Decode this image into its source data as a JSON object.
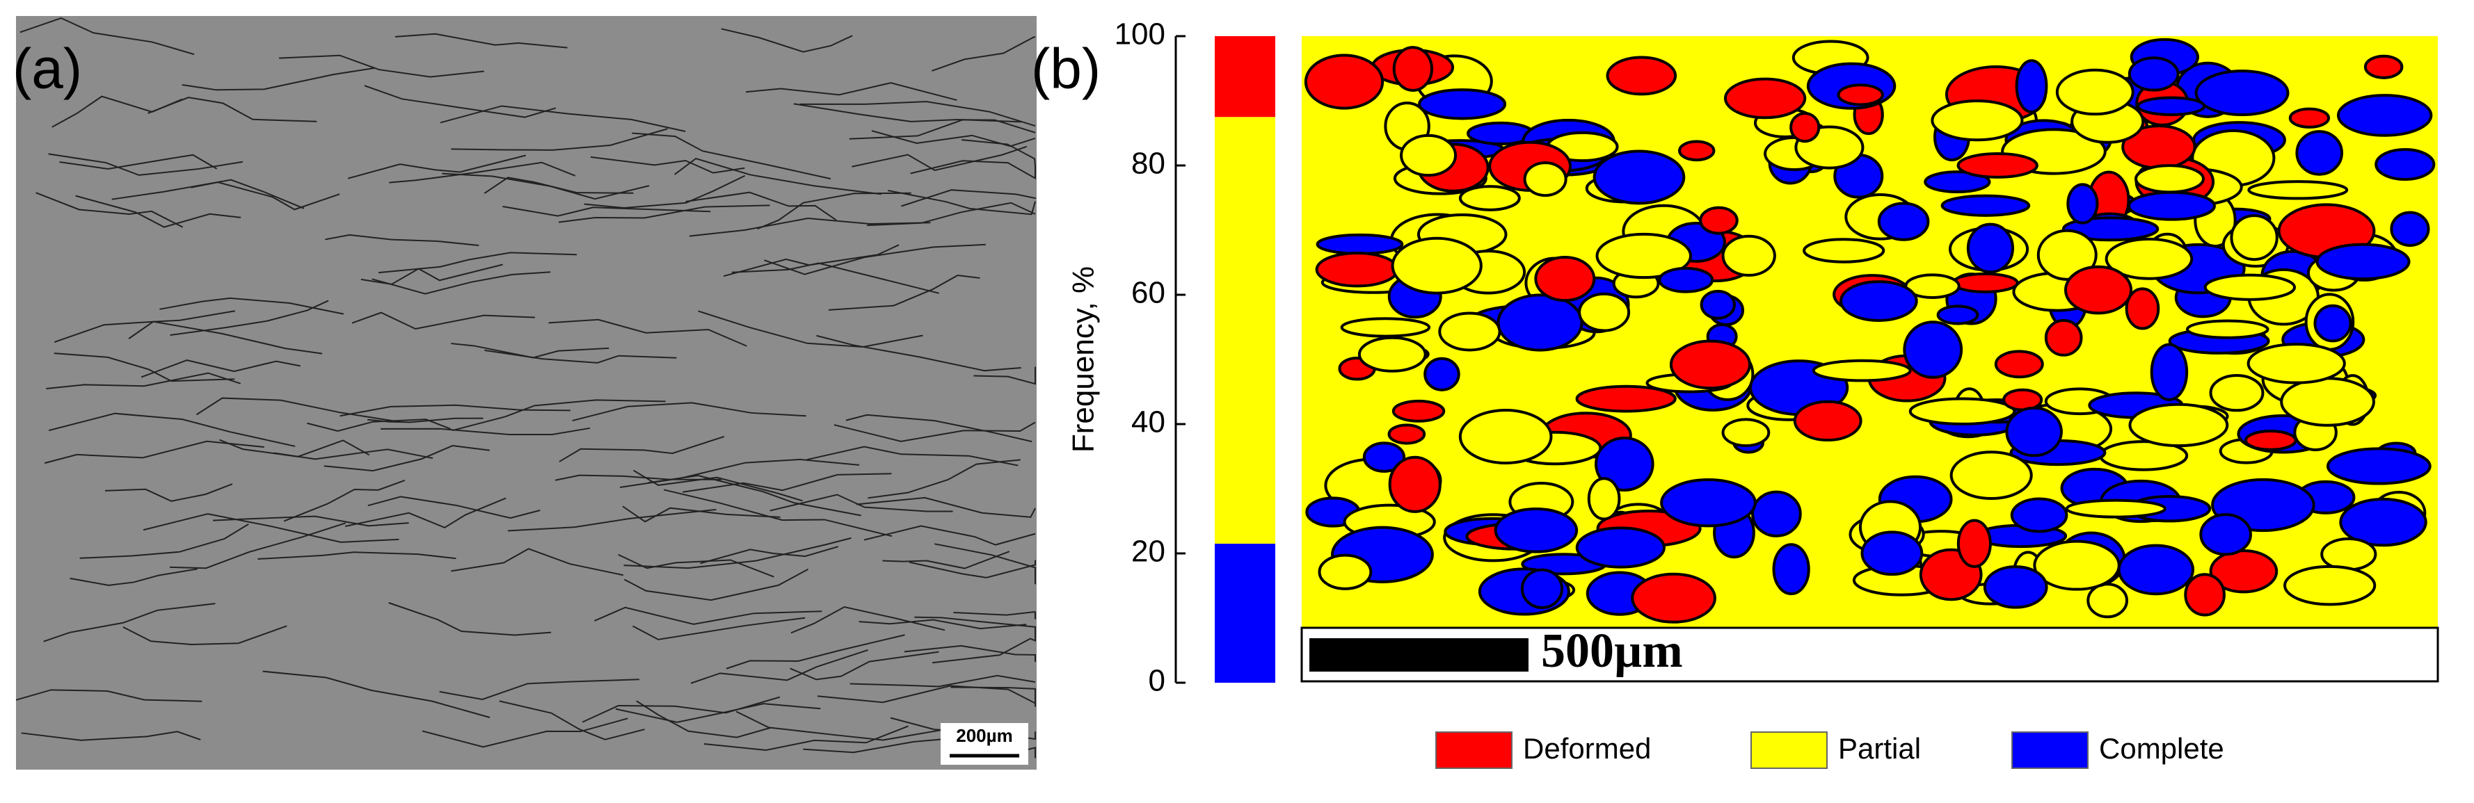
{
  "chart_data": {
    "type": "stacked_bar",
    "ylabel": "Frequency, %",
    "categories": [
      null
    ],
    "series": [
      {
        "name": "Complete",
        "color": "#0000ff",
        "values": [
          21.5
        ]
      },
      {
        "name": "Partial",
        "color": "#ffff00",
        "values": [
          66
        ]
      },
      {
        "name": "Deformed",
        "color": "#ff0000",
        "values": [
          12.5
        ]
      }
    ],
    "ylim": [
      0,
      100
    ],
    "yticks": [
      0,
      20,
      40,
      60,
      80,
      100
    ],
    "panel_labels": [
      "(a)",
      "(b)"
    ],
    "annotations": [
      "200µm",
      "500µm"
    ]
  }
}
